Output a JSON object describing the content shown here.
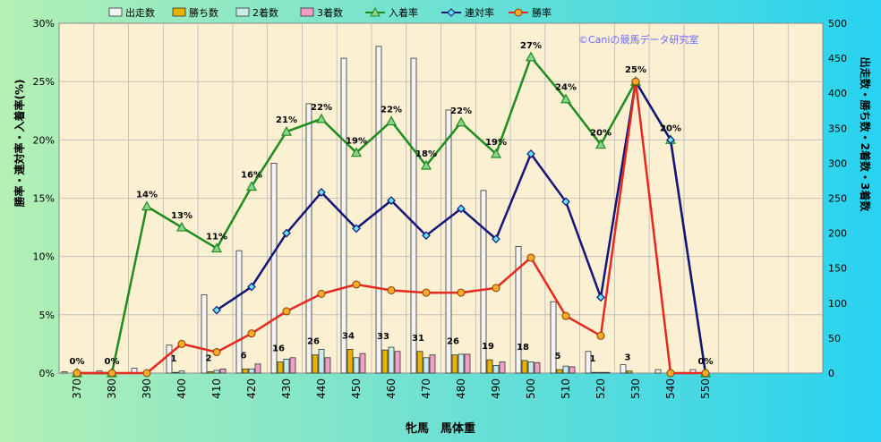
{
  "chart_data": {
    "type": "bar+line",
    "title": "",
    "watermark": "©Caniの競馬データ研究室",
    "xlabel": "牝馬　馬体重",
    "ylabel_left": "勝率・連対率・入着率(%)",
    "ylabel_right": "出走数・勝ち数・2着数・3着数",
    "categories": [
      "370",
      "380",
      "390",
      "400",
      "410",
      "420",
      "430",
      "440",
      "450",
      "460",
      "470",
      "480",
      "490",
      "500",
      "510",
      "520",
      "530",
      "540",
      "550"
    ],
    "left_axis": {
      "min": 0,
      "max": 30,
      "ticks": [
        "0%",
        "5%",
        "10%",
        "15%",
        "20%",
        "25%",
        "30%"
      ]
    },
    "right_axis": {
      "min": 0,
      "max": 500,
      "ticks": [
        "0",
        "50",
        "100",
        "150",
        "200",
        "250",
        "300",
        "350",
        "400",
        "450",
        "500"
      ]
    },
    "bar_series": [
      {
        "name": "出走数",
        "color": "#f4f4f4",
        "values": [
          2,
          3,
          7,
          40,
          112,
          175,
          300,
          385,
          450,
          467,
          450,
          376,
          261,
          181,
          102,
          31,
          12,
          5,
          5
        ]
      },
      {
        "name": "勝ち数",
        "color": "#e8b400",
        "values": [
          0,
          0,
          0,
          1,
          2,
          6,
          16,
          26,
          34,
          33,
          31,
          26,
          19,
          18,
          5,
          1,
          3,
          0,
          0
        ]
      },
      {
        "name": "2着数",
        "color": "#c8ecec",
        "values": [
          0,
          0,
          0,
          3,
          4,
          6,
          20,
          34,
          22,
          37,
          22,
          27,
          11,
          16,
          10,
          1,
          0,
          1,
          0
        ]
      },
      {
        "name": "3着数",
        "color": "#f0a0c8",
        "values": [
          0,
          0,
          0,
          0,
          6,
          13,
          22,
          22,
          28,
          31,
          26,
          27,
          16,
          15,
          9,
          1,
          0,
          0,
          0
        ]
      }
    ],
    "line_series": [
      {
        "name": "入着率",
        "color": "#1e8c1e",
        "marker": "triangle",
        "values": [
          0,
          0,
          14.3,
          12.5,
          10.7,
          16.0,
          20.7,
          21.8,
          18.9,
          21.6,
          17.8,
          21.5,
          18.8,
          27.1,
          23.5,
          19.6,
          25.0,
          20.0,
          0
        ]
      },
      {
        "name": "連対率",
        "color": "#14147a",
        "marker": "diamond",
        "values": [
          null,
          null,
          null,
          null,
          5.4,
          7.4,
          12.0,
          15.5,
          12.4,
          14.8,
          11.8,
          14.1,
          11.5,
          18.8,
          14.7,
          6.5,
          25.0,
          20.0,
          0
        ]
      },
      {
        "name": "勝率",
        "color": "#e8281e",
        "marker": "circle",
        "values": [
          0,
          0,
          0,
          2.5,
          1.8,
          3.4,
          5.3,
          6.8,
          7.6,
          7.1,
          6.9,
          6.9,
          7.3,
          9.9,
          4.9,
          3.2,
          25.0,
          0,
          0
        ]
      }
    ],
    "bar_labels": [
      {
        "index": 3,
        "text": "1"
      },
      {
        "index": 4,
        "text": "2"
      },
      {
        "index": 5,
        "text": "6"
      },
      {
        "index": 6,
        "text": "16"
      },
      {
        "index": 7,
        "text": "26"
      },
      {
        "index": 8,
        "text": "34"
      },
      {
        "index": 9,
        "text": "33"
      },
      {
        "index": 10,
        "text": "31"
      },
      {
        "index": 11,
        "text": "26"
      },
      {
        "index": 12,
        "text": "19"
      },
      {
        "index": 13,
        "text": "18"
      },
      {
        "index": 14,
        "text": "5"
      },
      {
        "index": 15,
        "text": "1"
      },
      {
        "index": 16,
        "text": "3"
      }
    ],
    "line_labels": [
      {
        "index": 0,
        "text": "0%"
      },
      {
        "index": 1,
        "text": "0%"
      },
      {
        "index": 2,
        "text": "14%"
      },
      {
        "index": 3,
        "text": "13%"
      },
      {
        "index": 4,
        "text": "11%"
      },
      {
        "index": 5,
        "text": "16%"
      },
      {
        "index": 6,
        "text": "21%"
      },
      {
        "index": 7,
        "text": "22%"
      },
      {
        "index": 8,
        "text": "19%"
      },
      {
        "index": 9,
        "text": "22%"
      },
      {
        "index": 10,
        "text": "18%"
      },
      {
        "index": 11,
        "text": "22%"
      },
      {
        "index": 12,
        "text": "19%"
      },
      {
        "index": 13,
        "text": "27%"
      },
      {
        "index": 14,
        "text": "24%"
      },
      {
        "index": 15,
        "text": "20%"
      },
      {
        "index": 16,
        "text": "25%"
      },
      {
        "index": 17,
        "text": "20%"
      },
      {
        "index": 18,
        "text": "0%"
      }
    ],
    "legend_position": "top",
    "grid": true,
    "colors": {
      "background_left": "#b4f0b4",
      "background_right": "#28d2f0",
      "plot_area": "#fbf0d2"
    }
  }
}
